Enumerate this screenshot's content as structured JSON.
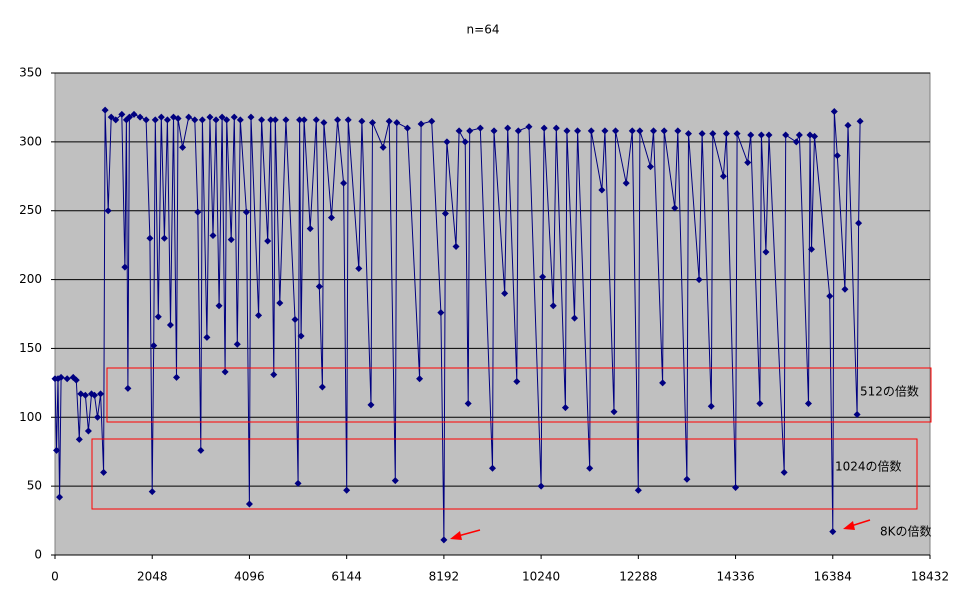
{
  "chart_data": {
    "type": "line",
    "title": "n=64",
    "x": [
      0,
      32,
      64,
      96,
      128,
      256,
      384,
      448,
      512,
      544,
      640,
      704,
      768,
      832,
      896,
      960,
      1024,
      1056,
      1120,
      1184,
      1280,
      1408,
      1472,
      1504,
      1536,
      1568,
      1664,
      1792,
      1920,
      2000,
      2048,
      2080,
      2112,
      2176,
      2240,
      2304,
      2368,
      2432,
      2496,
      2560,
      2592,
      2688,
      2816,
      2944,
      3008,
      3072,
      3104,
      3200,
      3264,
      3328,
      3392,
      3456,
      3520,
      3584,
      3616,
      3712,
      3776,
      3840,
      3904,
      4032,
      4096,
      4128,
      4288,
      4352,
      4480,
      4544,
      4608,
      4640,
      4736,
      4864,
      5056,
      5120,
      5152,
      5184,
      5248,
      5376,
      5504,
      5568,
      5632,
      5664,
      5824,
      5952,
      6080,
      6144,
      6176,
      6400,
      6464,
      6656,
      6688,
      6912,
      7040,
      7168,
      7200,
      7424,
      7680,
      7712,
      7936,
      8128,
      8192,
      8224,
      8256,
      8448,
      8512,
      8640,
      8704,
      8736,
      8960,
      9216,
      9248,
      9472,
      9536,
      9728,
      9760,
      9984,
      10240,
      10272,
      10304,
      10496,
      10560,
      10752,
      10784,
      10944,
      11008,
      11264,
      11296,
      11520,
      11584,
      11776,
      11808,
      12032,
      12160,
      12288,
      12320,
      12544,
      12608,
      12800,
      12832,
      13056,
      13120,
      13312,
      13344,
      13568,
      13632,
      13824,
      13856,
      14080,
      14144,
      14336,
      14368,
      14592,
      14656,
      14848,
      14880,
      14976,
      15040,
      15360,
      15392,
      15616,
      15680,
      15872,
      15904,
      15936,
      16000,
      16320,
      16384,
      16416,
      16480,
      16640,
      16704,
      16896,
      16928,
      16960
    ],
    "series": [
      {
        "color": "#000080",
        "values": [
          128,
          76,
          128,
          42,
          129,
          128,
          129,
          127,
          84,
          117,
          116,
          90,
          117,
          116,
          100,
          117,
          60,
          323,
          250,
          318,
          316,
          320,
          209,
          316,
          121,
          318,
          320,
          318,
          316,
          230,
          46,
          152,
          316,
          173,
          318,
          230,
          316,
          167,
          318,
          129,
          317,
          296,
          318,
          316,
          249,
          76,
          316,
          158,
          318,
          232,
          316,
          181,
          318,
          133,
          316,
          229,
          318,
          153,
          316,
          249,
          37,
          318,
          174,
          316,
          228,
          316,
          131,
          316,
          183,
          316,
          171,
          52,
          316,
          159,
          316,
          237,
          316,
          195,
          122,
          314,
          245,
          316,
          270,
          47,
          316,
          208,
          315,
          109,
          314,
          296,
          315,
          54,
          314,
          310,
          128,
          313,
          315,
          176,
          11,
          248,
          300,
          224,
          308,
          300,
          110,
          308,
          310,
          63,
          308,
          190,
          310,
          126,
          308,
          311,
          50,
          202,
          310,
          181,
          310,
          107,
          308,
          172,
          308,
          63,
          308,
          265,
          308,
          104,
          308,
          270,
          308,
          47,
          308,
          282,
          308,
          125,
          308,
          252,
          308,
          55,
          306,
          200,
          306,
          108,
          306,
          275,
          306,
          49,
          306,
          285,
          305,
          110,
          305,
          220,
          305,
          60,
          305,
          300,
          305,
          110,
          305,
          222,
          304,
          188,
          17,
          322,
          290,
          193,
          312,
          102,
          241,
          315
        ]
      }
    ],
    "xlim": [
      0,
      18432
    ],
    "xticks": [
      0,
      2048,
      4096,
      6144,
      8192,
      10240,
      12288,
      14336,
      16384,
      18432
    ],
    "ylim": [
      0,
      350
    ],
    "yticks": [
      0,
      50,
      100,
      150,
      200,
      250,
      300,
      350
    ],
    "grid": true,
    "annotations": [
      "512の倍数",
      "1024の倍数",
      "8Kの倍数"
    ]
  }
}
